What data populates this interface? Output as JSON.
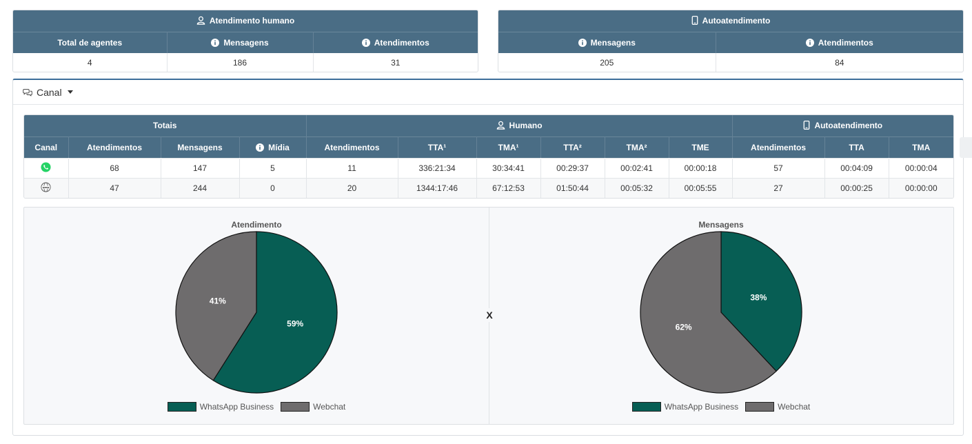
{
  "human_card": {
    "title": "Atendimento humano",
    "columns": [
      "Total de agentes",
      "Mensagens",
      "Atendimentos"
    ],
    "values": [
      "4",
      "186",
      "31"
    ]
  },
  "self_card": {
    "title": "Autoatendimento",
    "columns": [
      "Mensagens",
      "Atendimentos"
    ],
    "values": [
      "205",
      "84"
    ]
  },
  "panel": {
    "title": "Canal"
  },
  "channel_table": {
    "group_totais": "Totais",
    "group_humano": "Humano",
    "group_auto": "Autoatendimento",
    "headers": [
      "Canal",
      "Atendimentos",
      "Mensagens",
      "Mídia",
      "Atendimentos",
      "TTA¹",
      "TMA¹",
      "TTA²",
      "TMA²",
      "TME",
      "Atendimentos",
      "TTA",
      "TMA"
    ],
    "rows": [
      {
        "channel_icon": "whatsapp-icon",
        "cells": [
          "68",
          "147",
          "5",
          "11",
          "336:21:34",
          "30:34:41",
          "00:29:37",
          "00:02:41",
          "00:00:18",
          "57",
          "00:04:09",
          "00:00:04"
        ]
      },
      {
        "channel_icon": "webchat-icon",
        "cells": [
          "47",
          "244",
          "0",
          "20",
          "1344:17:46",
          "67:12:53",
          "01:50:44",
          "00:05:32",
          "00:05:55",
          "27",
          "00:00:25",
          "00:00:00"
        ]
      }
    ]
  },
  "separator_label": "X",
  "colors": {
    "header": "#4a6d85",
    "whatsapp": "#075e54",
    "webchat": "#6e6c6d"
  },
  "chart_data": [
    {
      "type": "pie",
      "title": "Atendimento",
      "categories": [
        "WhatsApp Business",
        "Webchat"
      ],
      "values": [
        59,
        41
      ],
      "labels": [
        "59%",
        "41%"
      ],
      "colors": [
        "#075e54",
        "#6e6c6d"
      ],
      "legend": "bottom"
    },
    {
      "type": "pie",
      "title": "Mensagens",
      "categories": [
        "WhatsApp Business",
        "Webchat"
      ],
      "values": [
        38,
        62
      ],
      "labels": [
        "38%",
        "62%"
      ],
      "colors": [
        "#075e54",
        "#6e6c6d"
      ],
      "legend": "bottom"
    }
  ]
}
